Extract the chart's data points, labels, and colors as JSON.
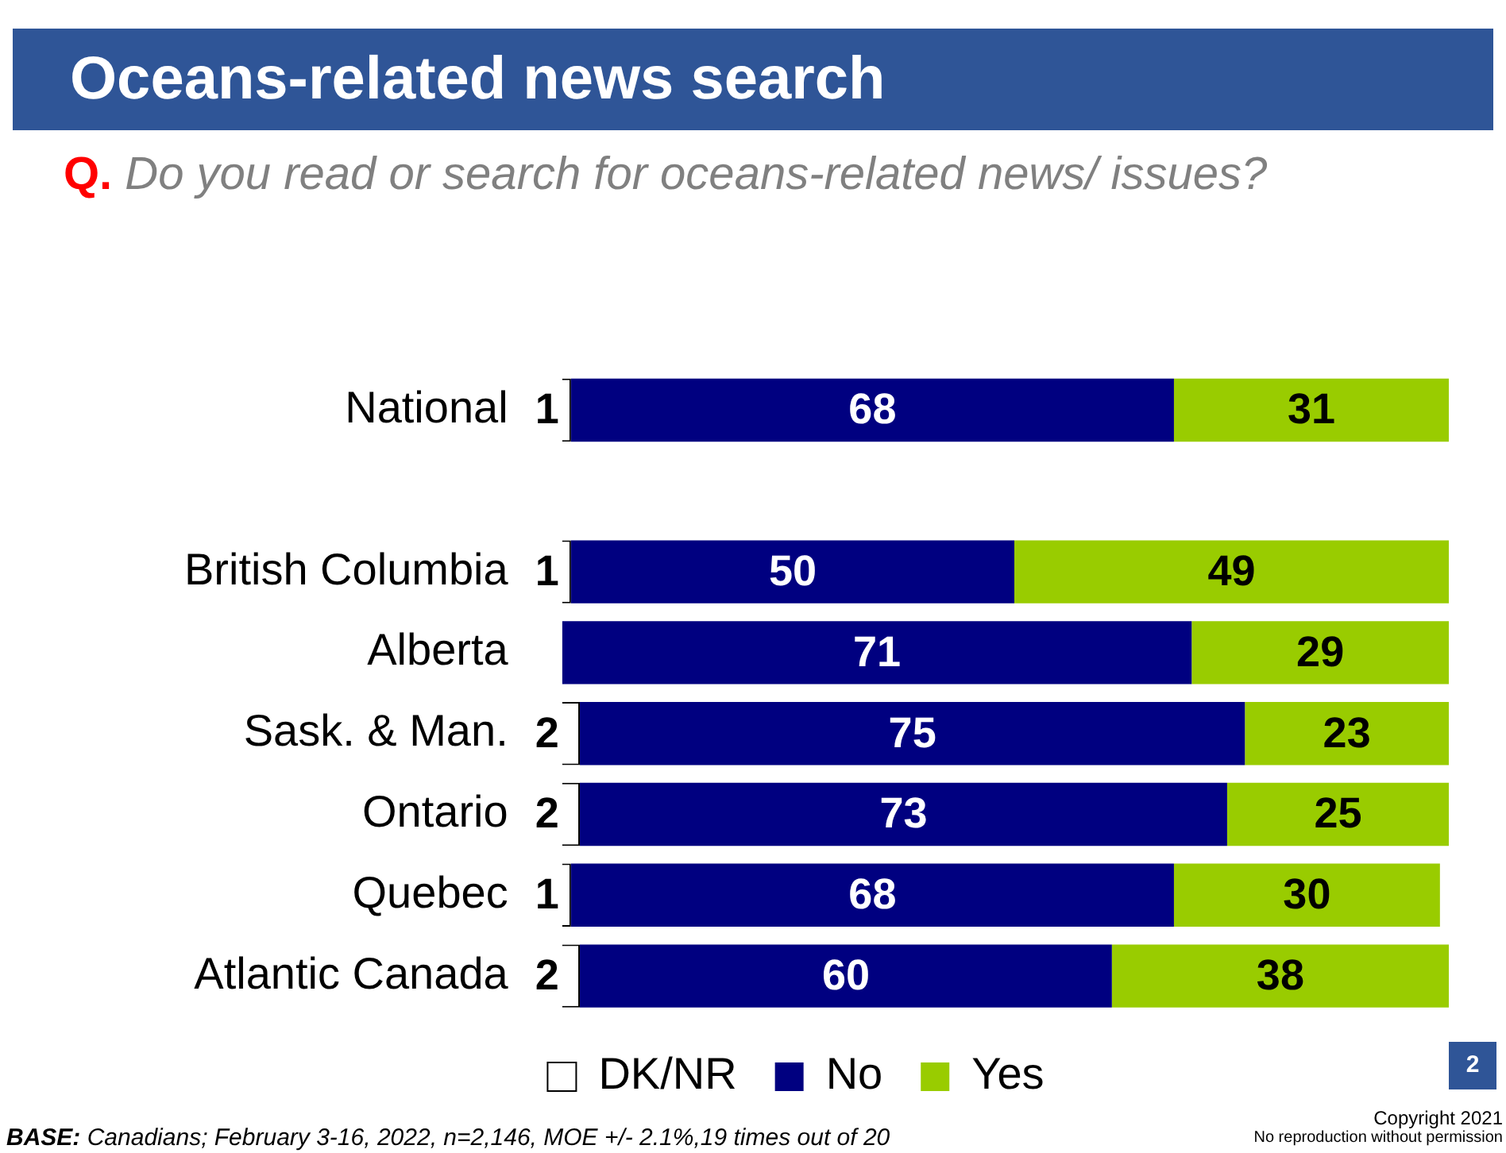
{
  "chart_data": {
    "type": "bar",
    "orientation": "horizontal",
    "stacked": true,
    "title": "Oceans-related news search",
    "subtitle": "Q. Do you read or search for oceans-related news/ issues?",
    "categories": [
      "National",
      null,
      "British Columbia",
      "Alberta",
      "Sask. & Man.",
      "Ontario",
      "Quebec",
      "Atlantic Canada"
    ],
    "series": [
      {
        "name": "DK/NR",
        "color": "#ffffff",
        "values": [
          1,
          null,
          1,
          0,
          2,
          2,
          1,
          2
        ],
        "value_labels": [
          "1",
          null,
          "1",
          null,
          "2",
          "2",
          "1",
          "2"
        ]
      },
      {
        "name": "No",
        "color": "#000080",
        "values": [
          68,
          null,
          50,
          71,
          75,
          73,
          68,
          60
        ],
        "value_labels": [
          "68",
          null,
          "50",
          "71",
          "75",
          "73",
          "68",
          "60"
        ]
      },
      {
        "name": "Yes",
        "color": "#99cc00",
        "values": [
          31,
          null,
          49,
          29,
          23,
          25,
          30,
          38
        ],
        "value_labels": [
          "31",
          null,
          "49",
          "29",
          "23",
          "25",
          "30",
          "38"
        ]
      }
    ],
    "xlim": [
      0,
      100
    ],
    "tick_labels": "y",
    "legend": "bottom",
    "annotations": [
      "BASE: Canadians; February 3-16, 2022, n=2,146, MOE +/- 2.1%,19 times out of 20",
      "2",
      "Copyright 2021",
      "No reproduction without permission"
    ]
  }
}
